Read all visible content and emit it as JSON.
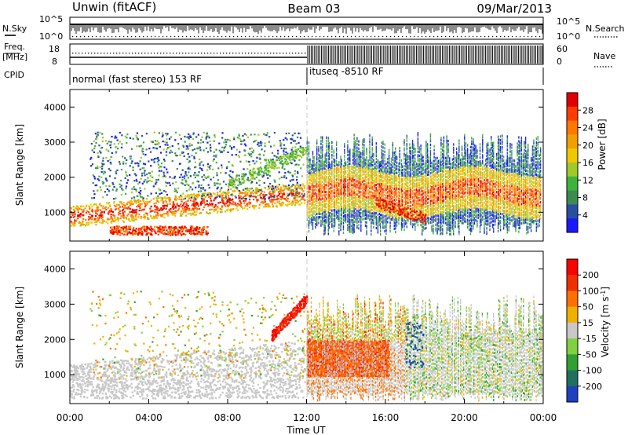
{
  "header": {
    "site": "Unwin (fitACF)",
    "beam": "Beam 03",
    "date": "09/Mar/2013"
  },
  "nsky_panel": {
    "left_label": "N.Sky",
    "left_ticks": [
      "10^5",
      "10^0"
    ],
    "right_ticks": [
      "10^5",
      "10^0"
    ],
    "right_label": "N.Search"
  },
  "freq_panel": {
    "left_label_1": "Freq.",
    "left_label_2": "[MHz]",
    "left_ticks": [
      "18",
      "8"
    ],
    "right_ticks": [
      "60",
      "0"
    ],
    "right_label": "Nave"
  },
  "cpid_panel": {
    "label": "CPID",
    "segment_1": "normal (fast stereo) 153 RF",
    "segment_2": "ituseq -8510 RF"
  },
  "chart_data": [
    {
      "type": "heatmap",
      "quantity": "Power",
      "ylabel": "Slant Range [km]",
      "xlabel": "",
      "y_ticks": [
        "4000",
        "3000",
        "2000",
        "1000"
      ],
      "y_tick_values": [
        4000,
        3000,
        2000,
        1000
      ],
      "ylim": [
        180,
        4500
      ],
      "colorbar": {
        "label": "Power [dB]",
        "ticks": [
          "28",
          "24",
          "20",
          "16",
          "12",
          "8",
          "4"
        ],
        "colors": [
          "#1a1aff",
          "#2850a0",
          "#3c8c50",
          "#3cb43c",
          "#a0c828",
          "#f0c800",
          "#f0a000",
          "#ff7800",
          "#ff3c00",
          "#e00000"
        ]
      }
    },
    {
      "type": "heatmap",
      "quantity": "Velocity",
      "ylabel": "Slant Range [km]",
      "xlabel": "Time UT",
      "x_ticks": [
        "00:00",
        "04:00",
        "08:00",
        "12:00",
        "16:00",
        "20:00",
        "00:00"
      ],
      "x_tick_hours": [
        0,
        4,
        8,
        12,
        16,
        20,
        24
      ],
      "y_ticks": [
        "4000",
        "3000",
        "2000",
        "1000"
      ],
      "y_tick_values": [
        4000,
        3000,
        2000,
        1000
      ],
      "ylim": [
        180,
        4500
      ],
      "colorbar": {
        "label": "Velocity [m s",
        "label_sup": "-1",
        "label_end": "]",
        "ticks": [
          "200",
          "100",
          "50",
          "15",
          "-15",
          "-50",
          "-100",
          "-200"
        ],
        "colors": [
          "#2040c0",
          "#207060",
          "#30a030",
          "#80d040",
          "#c8c8c8",
          "#f0b000",
          "#ff7000",
          "#f03000",
          "#ff0000"
        ]
      }
    }
  ]
}
